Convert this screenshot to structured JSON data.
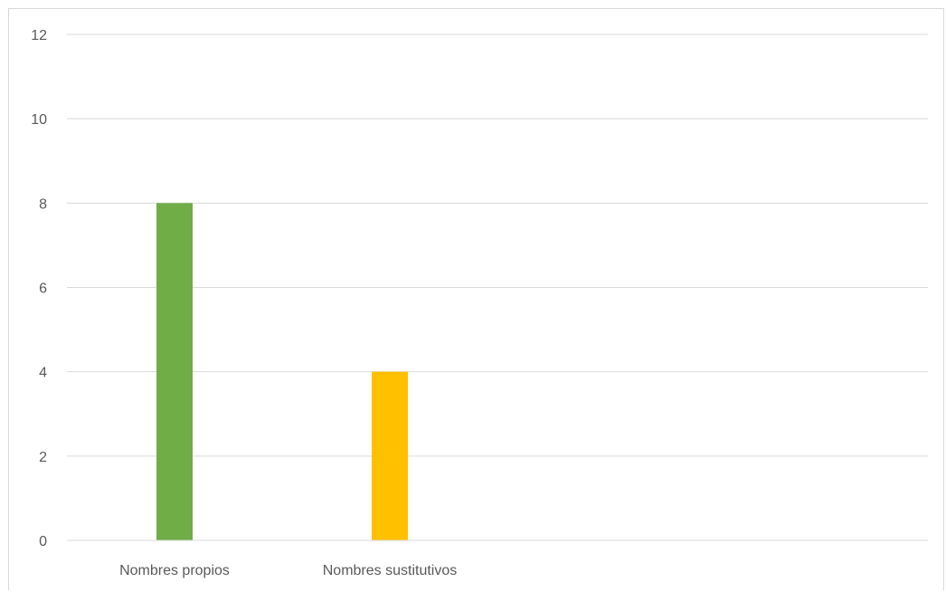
{
  "chart_data": {
    "type": "bar",
    "categories": [
      "Nombres propios",
      "Nombres sustitutivos",
      "",
      ""
    ],
    "values": [
      8,
      4,
      null,
      null
    ],
    "colors": [
      "#70ad47",
      "#ffc000"
    ],
    "ylim": [
      0,
      12
    ],
    "yticks": [
      0,
      2,
      4,
      6,
      8,
      10,
      12
    ],
    "grid": true,
    "title": "",
    "xlabel": "",
    "ylabel": ""
  }
}
